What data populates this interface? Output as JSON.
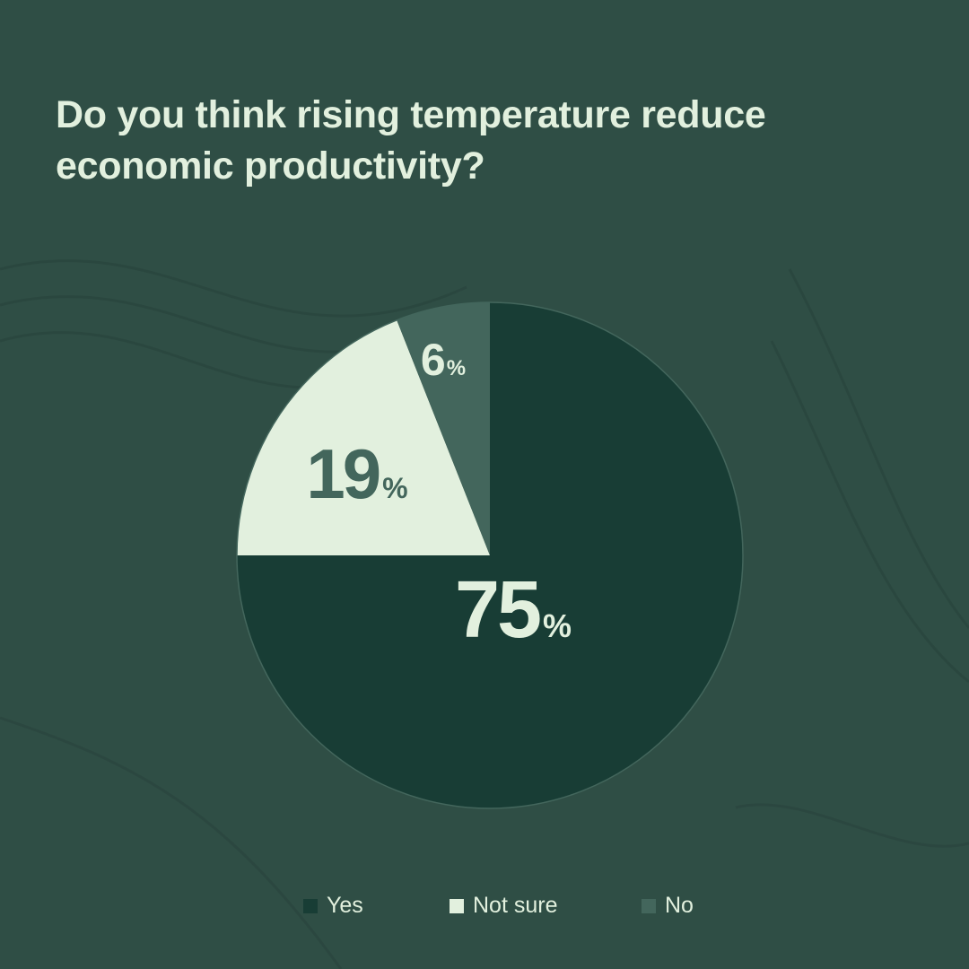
{
  "title": "Do you think rising temperature reduce economic productivity?",
  "chart_data": {
    "type": "pie",
    "title": "Do you think rising temperature reduce economic productivity?",
    "start_angle": "12 o'clock, clockwise",
    "legend_position": "bottom",
    "slices": [
      {
        "name": "Yes",
        "value": 75,
        "label": "75",
        "unit": "%",
        "color": "#183d35",
        "label_color": "#e2f0de"
      },
      {
        "name": "Not sure",
        "value": 19,
        "label": "19",
        "unit": "%",
        "color": "#e2f0de",
        "label_color": "#43665c"
      },
      {
        "name": "No",
        "value": 6,
        "label": "6",
        "unit": "%",
        "color": "#43665c",
        "label_color": "#e2f0de"
      }
    ]
  },
  "colors": {
    "background": "#2f4e45",
    "text": "#e2f0de"
  }
}
